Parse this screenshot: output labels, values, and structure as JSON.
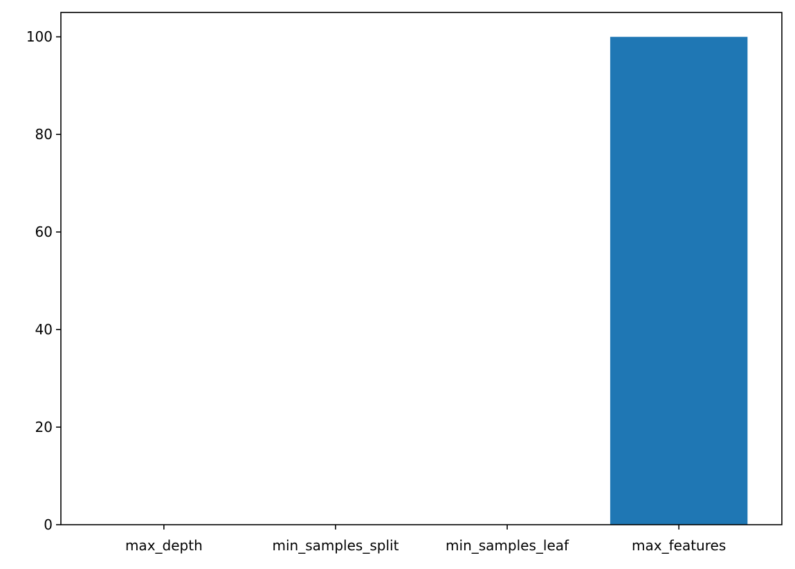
{
  "chart_data": {
    "type": "bar",
    "categories": [
      "max_depth",
      "min_samples_split",
      "min_samples_leaf",
      "max_features"
    ],
    "values": [
      0,
      0,
      0,
      100
    ],
    "title": "",
    "xlabel": "",
    "ylabel": "",
    "ylim": [
      0,
      105
    ],
    "yticks": [
      0,
      20,
      40,
      60,
      80,
      100
    ],
    "grid": false,
    "bar_color": "#1f77b4"
  }
}
